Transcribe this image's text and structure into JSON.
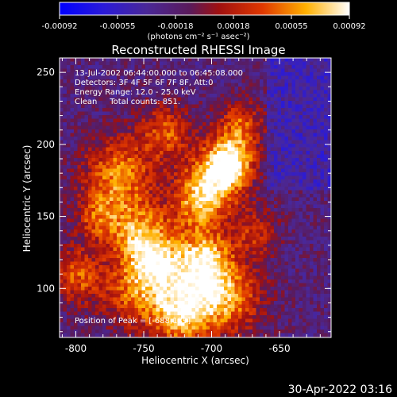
{
  "chart_data": {
    "type": "heatmap",
    "title": "Reconstructed RHESSI Image",
    "xlabel": "Heliocentric X (arcsec)",
    "ylabel": "Heliocentric Y (arcsec)",
    "xlim": [
      -812,
      -612
    ],
    "ylim": [
      66,
      260
    ],
    "xticks": [
      -800,
      -750,
      -700,
      -650
    ],
    "yticks": [
      100,
      150,
      200,
      250
    ],
    "colorbar": {
      "min": -0.00092,
      "max": 0.00092,
      "ticks": [
        "-0.00092",
        "-0.00055",
        "-0.00018",
        "0.00018",
        "0.00055",
        "0.00092"
      ],
      "label": "(photons cm⁻² s⁻¹ asec⁻²)"
    },
    "annotations": [
      "13-Jul-2002 06:44:00.000 to 06:45:08.000",
      "Detectors: 3F 4F 5F 6F 7F 8F, Att:0",
      "Energy Range: 12.0 - 25.0 keV",
      "Clean     Total counts: 851.",
      "Position of Peak = [-688,189]"
    ],
    "peak": [
      -688,
      189
    ],
    "grid": false
  },
  "footer": {
    "timestamp": "30-Apr-2022 03:16"
  },
  "colors": {
    "background": "#000000",
    "axis": "#ffffff"
  }
}
